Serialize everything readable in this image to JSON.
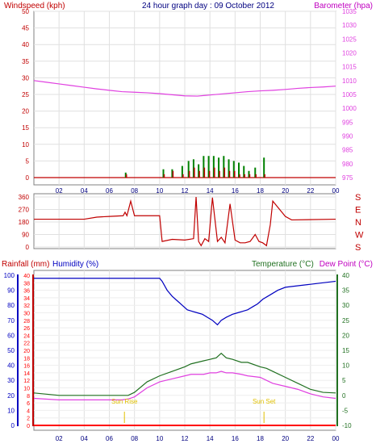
{
  "header": {
    "left_label": "Windspeed (kph)",
    "center_title": "24 hour graph day : 09 October 2012",
    "right_label": "Barometer (hpa)"
  },
  "direction_letters": [
    "S",
    "E",
    "N",
    "W",
    "S"
  ],
  "bottom_labels": {
    "rainfall": "Rainfall (mm)",
    "humidity": "Humidity (%)",
    "temperature": "Temperature (°C)",
    "dewpoint": "Dew Point (°C)"
  },
  "sun_labels": {
    "rise": "Sun Rise",
    "set": "Sun Set"
  },
  "colors": {
    "wind": "#c00000",
    "gust": "#008000",
    "baro": "#e040e0",
    "direction": "#c00000",
    "humidity": "#0000c0",
    "temperature": "#207020",
    "dewpoint": "#e040e0",
    "rain": "#ff0000",
    "sun": "#e0c000"
  },
  "chart_data": [
    {
      "type": "line",
      "title": "24 hour graph day : 09 October 2012",
      "x_ticks": [
        "02",
        "04",
        "06",
        "08",
        "10",
        "12",
        "14",
        "16",
        "18",
        "20",
        "22",
        "00"
      ],
      "y_left": {
        "label": "Windspeed (kph)",
        "range": [
          0,
          50
        ],
        "ticks": [
          0,
          5,
          10,
          15,
          20,
          25,
          30,
          35,
          40,
          45,
          50
        ]
      },
      "y_right": {
        "label": "Barometer (hpa)",
        "range": [
          975,
          1035
        ],
        "ticks": [
          975,
          980,
          985,
          990,
          995,
          1000,
          1005,
          1010,
          1015,
          1020,
          1025,
          1030,
          1035
        ]
      },
      "series": [
        {
          "name": "Barometer (hpa)",
          "x": [
            0,
            1,
            2,
            3,
            4,
            5,
            6,
            7,
            8,
            9,
            10,
            11,
            12,
            13,
            14,
            15,
            16,
            17,
            18,
            19,
            20,
            21,
            22,
            23,
            24
          ],
          "y": [
            1010,
            1009.4,
            1008.8,
            1008.2,
            1007.6,
            1007,
            1006.5,
            1006,
            1005.8,
            1005.6,
            1005.3,
            1004.9,
            1004.5,
            1004.4,
            1004.8,
            1005.2,
            1005.6,
            1006,
            1006.3,
            1006.5,
            1006.8,
            1007.2,
            1007.5,
            1007.7,
            1008
          ]
        },
        {
          "name": "Windspeed (kph)",
          "x": [
            7.3,
            10.3,
            11,
            11.8,
            12.3,
            12.7,
            13.1,
            13.5,
            13.9,
            14.3,
            14.7,
            15.1,
            15.5,
            15.9,
            16.3,
            16.7,
            17.1,
            17.6,
            18.3
          ],
          "y": [
            1,
            1,
            2,
            1,
            2,
            3,
            2,
            3,
            2,
            3,
            2,
            3,
            2,
            2,
            1,
            1,
            1,
            1,
            1
          ]
        },
        {
          "name": "Gust",
          "x": [
            7.3,
            10.3,
            11,
            11.8,
            12.3,
            12.7,
            13.1,
            13.5,
            13.9,
            14.3,
            14.7,
            15.1,
            15.5,
            15.9,
            16.3,
            16.7,
            17.1,
            17.6,
            18.3
          ],
          "y": [
            1.5,
            2.5,
            2.5,
            3.5,
            5,
            5.5,
            4,
            6.5,
            6.5,
            6.5,
            6,
            6.5,
            5.5,
            5,
            4.5,
            3.5,
            2,
            3,
            6
          ]
        }
      ]
    },
    {
      "type": "line",
      "y_left": {
        "range": [
          0,
          360
        ],
        "ticks": [
          0,
          90,
          180,
          270,
          360
        ]
      },
      "series": [
        {
          "name": "Wind Direction",
          "x": [
            0,
            4,
            5,
            6,
            7.1,
            7.25,
            7.4,
            7.7,
            8,
            9,
            10,
            10.2,
            11,
            12,
            12.7,
            12.9,
            13.1,
            13.3,
            13.6,
            13.9,
            14.2,
            14.6,
            14.9,
            15.2,
            15.6,
            16,
            16.4,
            16.8,
            17.2,
            17.6,
            17.9,
            18.2,
            18.5,
            18.8,
            19,
            20,
            20.5,
            24
          ],
          "y": [
            200,
            200,
            215,
            220,
            225,
            250,
            225,
            330,
            225,
            225,
            225,
            40,
            55,
            50,
            60,
            365,
            40,
            10,
            60,
            40,
            355,
            40,
            70,
            30,
            310,
            50,
            30,
            30,
            40,
            90,
            40,
            30,
            10,
            160,
            330,
            220,
            195,
            200
          ]
        }
      ]
    },
    {
      "type": "line",
      "x_ticks": [
        "02",
        "04",
        "06",
        "08",
        "10",
        "12",
        "14",
        "16",
        "18",
        "20",
        "22",
        "00"
      ],
      "y_left": {
        "labels": [
          "Rainfall (mm)",
          "Humidity (%)"
        ],
        "humidity_ticks": [
          0,
          10,
          20,
          30,
          40,
          50,
          60,
          70,
          80,
          90,
          100
        ],
        "rain_ticks": [
          0,
          2,
          4,
          6,
          8,
          10,
          12,
          14,
          16,
          18,
          20,
          22,
          24,
          26,
          28,
          30,
          32,
          34,
          36,
          38,
          40
        ]
      },
      "y_right": {
        "labels": [
          "Temperature (°C)",
          "Dew Point (°C)"
        ],
        "range": [
          -10,
          40
        ],
        "ticks": [
          -10,
          -5,
          0,
          5,
          10,
          15,
          20,
          25,
          30,
          35,
          40
        ]
      },
      "series": [
        {
          "name": "Humidity (%)",
          "x": [
            0,
            4,
            8,
            10,
            10.2,
            10.6,
            11,
            11.4,
            11.8,
            12.2,
            12.6,
            13,
            13.4,
            13.8,
            14.2,
            14.6,
            14.9,
            15.3,
            15.8,
            16.2,
            16.6,
            17,
            17.4,
            17.8,
            18.2,
            18.8,
            19.4,
            20,
            21,
            22,
            23,
            24
          ],
          "y": [
            98,
            98,
            98,
            98,
            96,
            90,
            86,
            83,
            80,
            77,
            76,
            75,
            74,
            72,
            70,
            67,
            70,
            72,
            74,
            75,
            76,
            77,
            79,
            81,
            84,
            87,
            90,
            92,
            93,
            94,
            95,
            96
          ]
        },
        {
          "name": "Temperature (°C)",
          "x": [
            0,
            2,
            4,
            6,
            7,
            7.5,
            8,
            9,
            10,
            11,
            12,
            12.5,
            13,
            13.5,
            14,
            14.5,
            14.9,
            15.3,
            15.8,
            16.5,
            17,
            18,
            18.5,
            19,
            20,
            21,
            22,
            23,
            24
          ],
          "y": [
            0.8,
            0,
            0,
            0,
            0,
            0,
            1,
            4.5,
            6.5,
            8,
            9.5,
            10.5,
            11,
            11.5,
            12,
            12.5,
            14,
            12.5,
            12,
            11,
            11,
            9.5,
            9,
            8,
            6,
            4,
            2,
            1,
            0.8
          ]
        },
        {
          "name": "Dew Point (°C)",
          "x": [
            0,
            2,
            4,
            6,
            7,
            7.5,
            8,
            9,
            10,
            11,
            12,
            12.5,
            13,
            13.5,
            14,
            14.5,
            14.9,
            15.3,
            15.8,
            16.5,
            17,
            18,
            18.5,
            19,
            20,
            21,
            22,
            23,
            24
          ],
          "y": [
            -1,
            -1.5,
            -1.5,
            -1.5,
            -1.5,
            -1.2,
            -0.5,
            2.5,
            4.5,
            5.5,
            6.5,
            7,
            7,
            7,
            7.5,
            7.5,
            8,
            7.5,
            7.5,
            7,
            6.5,
            6,
            5,
            4,
            3,
            2,
            0.5,
            -0.5,
            -1
          ]
        },
        {
          "name": "Rainfall (mm)",
          "x": [
            0,
            24
          ],
          "y": [
            0,
            0
          ]
        }
      ],
      "annotations": [
        {
          "text": "Sun Rise",
          "x": 7.2
        },
        {
          "text": "Sun Set",
          "x": 18.3
        }
      ]
    }
  ]
}
